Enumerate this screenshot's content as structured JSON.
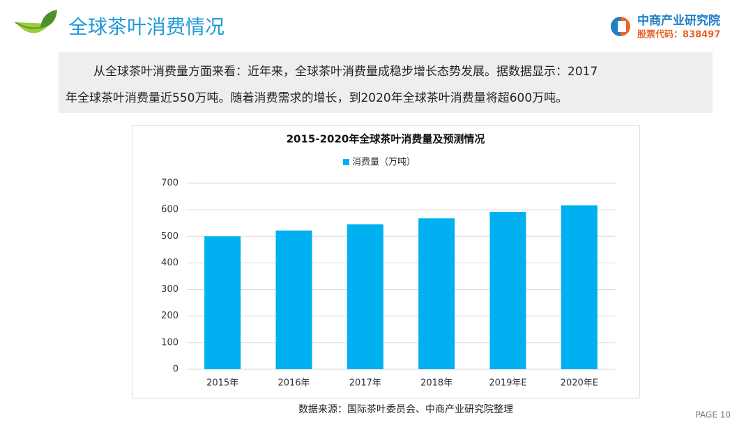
{
  "header": {
    "title": "全球茶叶消费情况",
    "brand": "中商产业研究院",
    "stock_code": "股票代码：838497"
  },
  "paragraph": {
    "lines": [
      "从全球茶叶消费量方面来看：近年来，全球茶叶消费量成稳步增长态势发展。据数据显示：2017",
      "年全球茶叶消费量近550万吨。随着消费需求的增长，到2020年全球茶叶消费量将超600万吨。"
    ]
  },
  "chart_data": {
    "type": "bar",
    "title": "2015-2020年全球茶叶消费量及预测情况",
    "categories": [
      "2015年",
      "2016年",
      "2017年",
      "2018年",
      "2019年E",
      "2020年E"
    ],
    "series": [
      {
        "name": "消费量（万吨）",
        "color": "#00b0f0",
        "values": [
          500,
          522,
          545,
          568,
          592,
          617
        ]
      }
    ],
    "ylim": [
      0,
      700
    ],
    "yticks": [
      0,
      100,
      200,
      300,
      400,
      500,
      600,
      700
    ],
    "grid": true,
    "legend": "top"
  },
  "source": "数据来源：国际茶叶委员会、中商产业研究院整理",
  "page": "PAGE 10"
}
